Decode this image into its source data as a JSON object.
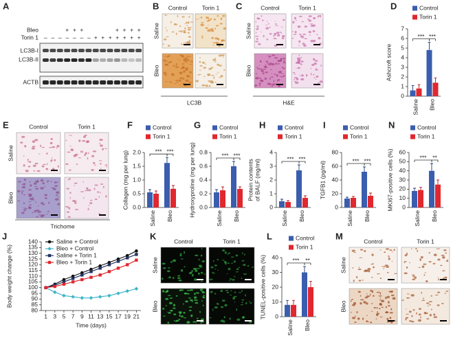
{
  "blot": {
    "label": "A",
    "rows": [
      {
        "name": "Bleo",
        "signs": [
          "+ + +",
          "+ + + +"
        ]
      },
      {
        "name": "Torin 1",
        "signs": [
          "– – – – – – –",
          "+ + + + + + +"
        ]
      }
    ],
    "bands": [
      "LC3B-I",
      "LC3B-II",
      "ACTB"
    ]
  },
  "image_panels": [
    {
      "label": "B",
      "columns": [
        "Control",
        "Torin 1"
      ],
      "rows": [
        "Saline",
        "Bleo"
      ],
      "caption": "LC3B"
    },
    {
      "label": "C",
      "columns": [
        "Control",
        "Torin 1"
      ],
      "rows": [
        "Saline",
        "Bleo"
      ],
      "caption": "H&E"
    },
    {
      "label": "E",
      "columns": [
        "Control",
        "Torin 1"
      ],
      "rows": [
        "Saline",
        "Bleo"
      ],
      "caption": "Trichome"
    },
    {
      "label": "K",
      "columns": [
        "Control",
        "Torin 1"
      ],
      "rows": [
        "Saline",
        "Bleo"
      ]
    },
    {
      "label": "M",
      "columns": [
        "Control",
        "Torin 1"
      ],
      "rows": [
        "Saline",
        "Bleo"
      ]
    }
  ],
  "chart_data": [
    {
      "type": "bar",
      "label": "D",
      "y_label": "Ashcroft score",
      "categories": [
        "Saline",
        "Bleo"
      ],
      "series": [
        {
          "name": "Control",
          "color": "#3a5dae",
          "values": [
            0.6,
            4.8
          ],
          "errors": [
            0.5,
            0.8
          ]
        },
        {
          "name": "Torin 1",
          "color": "#e0282e",
          "values": [
            0.8,
            1.4
          ],
          "errors": [
            0.4,
            0.5
          ]
        }
      ],
      "ylim": [
        0,
        7
      ],
      "yticks": [
        0,
        1,
        2,
        3,
        4,
        5,
        6,
        7
      ],
      "significance": [
        "***",
        "***"
      ]
    },
    {
      "type": "bar",
      "label": "F",
      "y_label": "Collagen (mg per lung)",
      "categories": [
        "Saline",
        "Bleo"
      ],
      "series": [
        {
          "name": "Control",
          "color": "#3a5dae",
          "values": [
            0.55,
            1.62
          ],
          "errors": [
            0.1,
            0.2
          ]
        },
        {
          "name": "Torin 1",
          "color": "#e0282e",
          "values": [
            0.5,
            0.68
          ],
          "errors": [
            0.1,
            0.12
          ]
        }
      ],
      "ylim": [
        0,
        2
      ],
      "yticks": [
        {
          "value": 0,
          "label": "0.0"
        },
        {
          "value": 0.5,
          "label": "0.5"
        },
        {
          "value": 1,
          "label": "1.0"
        },
        {
          "value": 1.5,
          "label": "1.5"
        },
        {
          "value": 2,
          "label": "2.0"
        }
      ],
      "significance": [
        "***",
        "***"
      ]
    },
    {
      "type": "bar",
      "label": "G",
      "y_label": "Hydroxyproline (mg per lung)",
      "categories": [
        "Saline",
        "Bleo"
      ],
      "series": [
        {
          "name": "Control",
          "color": "#3a5dae",
          "values": [
            0.22,
            0.6
          ],
          "errors": [
            0.04,
            0.07
          ]
        },
        {
          "name": "Torin 1",
          "color": "#e0282e",
          "values": [
            0.25,
            0.27
          ],
          "errors": [
            0.05,
            0.03
          ]
        }
      ],
      "ylim": [
        0,
        0.8
      ],
      "yticks": [
        {
          "value": 0,
          "label": "0.0"
        },
        0.2,
        0.4,
        0.6,
        0.8
      ],
      "significance": [
        "***",
        "***"
      ]
    },
    {
      "type": "bar",
      "label": "H",
      "y_label": [
        "Protein contents",
        "of BALF (mg/ml)"
      ],
      "categories": [
        "Saline",
        "Bleo"
      ],
      "series": [
        {
          "name": "Control",
          "color": "#3a5dae",
          "values": [
            0.45,
            2.7
          ],
          "errors": [
            0.15,
            0.4
          ]
        },
        {
          "name": "Torin 1",
          "color": "#e0282e",
          "values": [
            0.4,
            0.7
          ],
          "errors": [
            0.1,
            0.15
          ]
        }
      ],
      "ylim": [
        0,
        4
      ],
      "yticks": [
        0,
        1,
        2,
        3,
        4
      ],
      "significance": [
        "***",
        "***"
      ]
    },
    {
      "type": "bar",
      "label": "I",
      "y_label": "TGFB1 (pg/ml)",
      "categories": [
        "Saline",
        "Bleo"
      ],
      "series": [
        {
          "name": "Control",
          "color": "#3a5dae",
          "values": [
            13,
            52
          ],
          "errors": [
            2,
            7
          ]
        },
        {
          "name": "Torin 1",
          "color": "#e0282e",
          "values": [
            14,
            17
          ],
          "errors": [
            2,
            4
          ]
        }
      ],
      "ylim": [
        0,
        80
      ],
      "yticks": [
        0,
        20,
        40,
        60,
        80
      ],
      "significance": [
        "***",
        "***"
      ]
    },
    {
      "type": "bar",
      "label": "N",
      "y_label": "MKI67-positive cells (%)",
      "categories": [
        "Saline",
        "Bleo"
      ],
      "series": [
        {
          "name": "Control",
          "color": "#3a5dae",
          "values": [
            18,
            40
          ],
          "errors": [
            3,
            8
          ]
        },
        {
          "name": "Torin 1",
          "color": "#e0282e",
          "values": [
            19,
            25
          ],
          "errors": [
            3,
            5
          ]
        }
      ],
      "ylim": [
        0,
        60
      ],
      "yticks": [
        0,
        10,
        20,
        30,
        40,
        50,
        60
      ],
      "significance": [
        "***",
        "**"
      ]
    },
    {
      "type": "bar",
      "label": "L",
      "y_label": "TUNEL-positive cells (%)",
      "categories": [
        "Saline",
        "Bleo"
      ],
      "series": [
        {
          "name": "Control",
          "color": "#3a5dae",
          "values": [
            8,
            30
          ],
          "errors": [
            3,
            4
          ]
        },
        {
          "name": "Torin 1",
          "color": "#e0282e",
          "values": [
            8,
            20
          ],
          "errors": [
            3,
            4
          ]
        }
      ],
      "ylim": [
        0,
        40
      ],
      "yticks": [
        0,
        10,
        20,
        30,
        40
      ],
      "significance": [
        "***",
        "**"
      ]
    },
    {
      "type": "line",
      "label": "J",
      "y_label": "Body weight change (%)",
      "x_label": "Time (days)",
      "x": [
        1,
        3,
        5,
        7,
        9,
        11,
        13,
        15,
        17,
        19,
        21
      ],
      "xlim": [
        0,
        22
      ],
      "xticks": [
        1,
        3,
        5,
        7,
        9,
        11,
        13,
        15,
        17,
        19,
        21
      ],
      "ylim": [
        80,
        140
      ],
      "yticks": [
        80,
        85,
        90,
        95,
        100,
        105,
        110,
        115,
        120,
        125,
        130,
        135,
        140
      ],
      "series": [
        {
          "name": "Saline + Control",
          "color": "#111111",
          "marker": "circle",
          "values": [
            100,
            103,
            107,
            110,
            113,
            116,
            119,
            122,
            125,
            128,
            132
          ]
        },
        {
          "name": "Bleo + Control",
          "color": "#3fb6c8",
          "marker": "diamond",
          "values": [
            100,
            96,
            93,
            92,
            91,
            91,
            92,
            93,
            95,
            97,
            99
          ]
        },
        {
          "name": "Saline + Torin 1",
          "color": "#23325e",
          "marker": "square",
          "values": [
            100,
            102,
            105,
            108,
            111,
            114,
            117,
            120,
            123,
            126,
            129
          ]
        },
        {
          "name": "Bleo + Torin 1",
          "color": "#e0282e",
          "marker": "square",
          "values": [
            100,
            101,
            103,
            105,
            107,
            109,
            111,
            114,
            117,
            120,
            124
          ]
        }
      ]
    }
  ]
}
